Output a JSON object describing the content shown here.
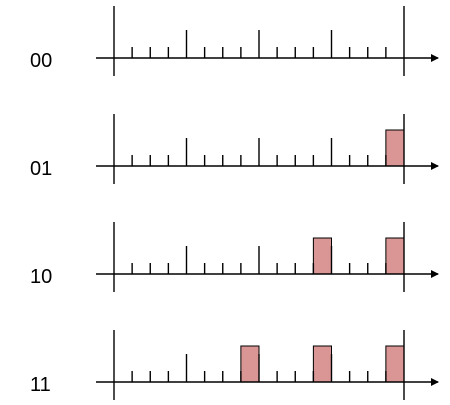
{
  "colors": {
    "line": "#000000",
    "pulse_fill": "#d99694",
    "background": "#ffffff"
  },
  "timeline": {
    "tick_count": 17,
    "major_every": 4,
    "slot_count": 4
  },
  "rows": [
    {
      "label": "00",
      "pulses": []
    },
    {
      "label": "01",
      "pulses": [
        4
      ]
    },
    {
      "label": "10",
      "pulses": [
        3,
        4
      ]
    },
    {
      "label": "11",
      "pulses": [
        2,
        3,
        4
      ]
    }
  ]
}
